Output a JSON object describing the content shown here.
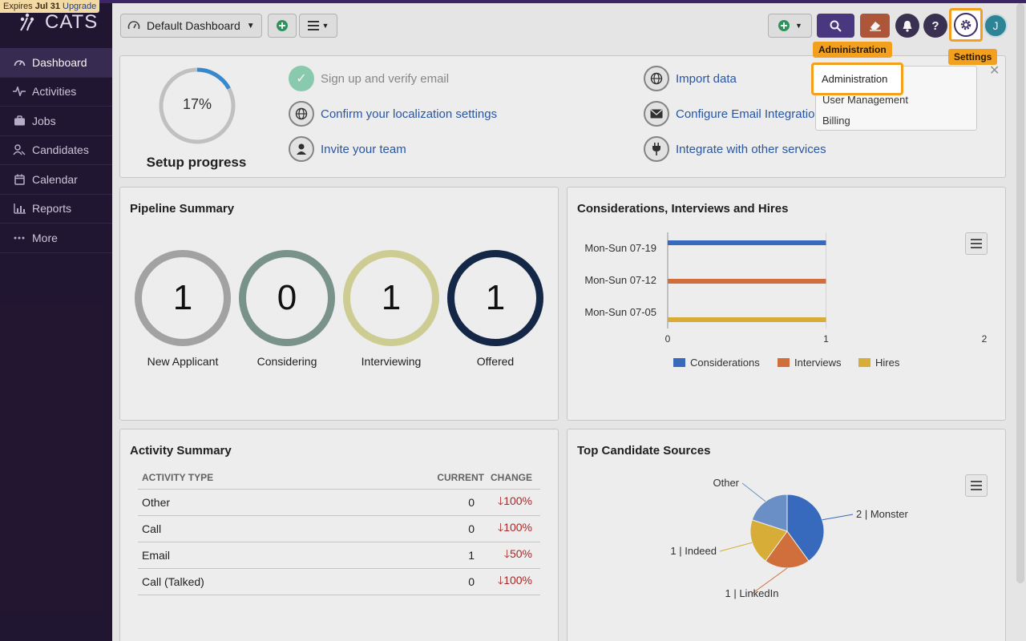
{
  "app": {
    "expires_prefix": "Expires",
    "expires_date": "Jul 31",
    "upgrade": "Upgrade",
    "logo_text": "CATS"
  },
  "sidebar": {
    "items": [
      {
        "label": "Dashboard",
        "icon": "dashboard-icon",
        "active": true
      },
      {
        "label": "Activities",
        "icon": "activity-icon"
      },
      {
        "label": "Jobs",
        "icon": "briefcase-icon"
      },
      {
        "label": "Candidates",
        "icon": "candidates-icon"
      },
      {
        "label": "Calendar",
        "icon": "calendar-icon"
      },
      {
        "label": "Reports",
        "icon": "reports-icon"
      },
      {
        "label": "More",
        "icon": "more-icon"
      }
    ]
  },
  "header": {
    "dashboard_select": "Default Dashboard"
  },
  "setup": {
    "percent": "17%",
    "progress": 0.17,
    "label": "Setup progress",
    "tasks": [
      {
        "label": "Sign up and verify email",
        "icon": "check-icon",
        "done": true
      },
      {
        "label": "Confirm your localization settings",
        "icon": "globe-icon"
      },
      {
        "label": "Invite your team",
        "icon": "user-icon"
      },
      {
        "label": "Import data",
        "icon": "globe-icon"
      },
      {
        "label": "Configure Email Integratio",
        "icon": "envelope-icon"
      },
      {
        "label": "Integrate with other services",
        "icon": "plug-icon"
      }
    ]
  },
  "pipeline": {
    "title": "Pipeline Summary",
    "stages": [
      {
        "label": "New Applicant",
        "count": "1",
        "color": "#a9a9a9"
      },
      {
        "label": "Considering",
        "count": "0",
        "color": "#7f9990"
      },
      {
        "label": "Interviewing",
        "count": "1",
        "color": "#d6d69a"
      },
      {
        "label": "Offered",
        "count": "1",
        "color": "#15294a"
      }
    ]
  },
  "considerations": {
    "title": "Considerations, Interviews and Hires",
    "chart_data": {
      "type": "bar",
      "orientation": "horizontal",
      "categories": [
        "Mon-Sun 07-19",
        "Mon-Sun 07-12",
        "Mon-Sun 07-05"
      ],
      "series": [
        {
          "name": "Considerations",
          "values": [
            1,
            0,
            0
          ],
          "color": "#3a6fc4"
        },
        {
          "name": "Interviews",
          "values": [
            0,
            1,
            0
          ],
          "color": "#d9743f"
        },
        {
          "name": "Hires",
          "values": [
            0,
            0,
            1
          ],
          "color": "#e0b53a"
        }
      ],
      "xlim": [
        0,
        2
      ],
      "x_ticks": [
        "0",
        "1",
        "2"
      ],
      "legend": "bottom"
    }
  },
  "activity": {
    "title": "Activity Summary",
    "columns": [
      "ACTIVITY TYPE",
      "CURRENT",
      "CHANGE"
    ],
    "rows": [
      {
        "type": "Other",
        "current": "0",
        "change": "100%"
      },
      {
        "type": "Call",
        "current": "0",
        "change": "100%"
      },
      {
        "type": "Email",
        "current": "1",
        "change": "50%"
      },
      {
        "type": "Call (Talked)",
        "current": "0",
        "change": "100%"
      }
    ]
  },
  "sources": {
    "title": "Top Candidate Sources",
    "chart_data": {
      "type": "pie",
      "slices": [
        {
          "label": "2 | Monster",
          "value": 2,
          "color": "#3a6fc4"
        },
        {
          "label": "1 | LinkedIn",
          "value": 1,
          "color": "#d9743f"
        },
        {
          "label": "1 | Indeed",
          "value": 1,
          "color": "#e0b53a"
        },
        {
          "label": "Other",
          "value": 1,
          "color": "#6f95cf"
        }
      ]
    }
  },
  "settings_menu": {
    "items": [
      "Administration",
      "User Management",
      "Billing"
    ],
    "highlight": "Administration"
  },
  "tooltips": {
    "administration": "Administration",
    "settings": "Settings"
  }
}
